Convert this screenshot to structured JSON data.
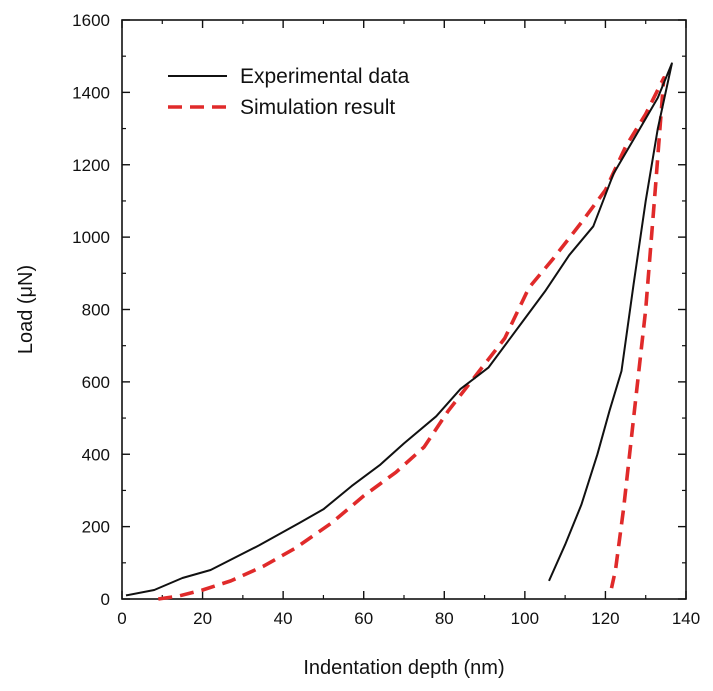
{
  "chart_data": {
    "type": "line",
    "title": "",
    "xlabel": "Indentation depth (nm)",
    "ylabel": "Load (μN)",
    "xlim": [
      0,
      140
    ],
    "ylim": [
      0,
      1600
    ],
    "x_ticks": [
      0,
      20,
      40,
      60,
      80,
      100,
      120,
      140
    ],
    "y_ticks": [
      0,
      200,
      400,
      600,
      800,
      1000,
      1200,
      1400,
      1600
    ],
    "grid": false,
    "legend_position": "top-left",
    "series": [
      {
        "name": "Experimental data",
        "color": "#111111",
        "style": "solid",
        "points": [
          [
            1,
            10
          ],
          [
            8,
            25
          ],
          [
            15,
            58
          ],
          [
            22,
            80
          ],
          [
            34,
            148
          ],
          [
            44,
            210
          ],
          [
            50,
            248
          ],
          [
            57,
            312
          ],
          [
            64,
            370
          ],
          [
            70,
            430
          ],
          [
            78,
            505
          ],
          [
            84,
            580
          ],
          [
            91,
            640
          ],
          [
            99,
            760
          ],
          [
            105,
            850
          ],
          [
            111,
            950
          ],
          [
            117,
            1030
          ],
          [
            122,
            1175
          ],
          [
            127,
            1270
          ],
          [
            133,
            1385
          ],
          [
            136.5,
            1480
          ],
          [
            133,
            1300
          ],
          [
            130,
            1100
          ],
          [
            127,
            870
          ],
          [
            124,
            630
          ],
          [
            121,
            520
          ],
          [
            118,
            400
          ],
          [
            114,
            260
          ],
          [
            110,
            150
          ],
          [
            106,
            50
          ]
        ]
      },
      {
        "name": "Simulation result",
        "color": "#e02a2a",
        "style": "dashed",
        "points": [
          [
            9,
            0
          ],
          [
            14,
            8
          ],
          [
            20,
            25
          ],
          [
            27,
            50
          ],
          [
            35,
            90
          ],
          [
            43,
            140
          ],
          [
            52,
            210
          ],
          [
            60,
            285
          ],
          [
            68,
            350
          ],
          [
            75,
            420
          ],
          [
            81,
            520
          ],
          [
            88,
            620
          ],
          [
            95,
            720
          ],
          [
            101,
            860
          ],
          [
            107,
            940
          ],
          [
            114,
            1040
          ],
          [
            120,
            1130
          ],
          [
            125,
            1250
          ],
          [
            130,
            1340
          ],
          [
            134.5,
            1440
          ],
          [
            132.5,
            1150
          ],
          [
            130,
            800
          ],
          [
            127,
            500
          ],
          [
            124.5,
            250
          ],
          [
            122.5,
            80
          ],
          [
            121.5,
            30
          ]
        ]
      }
    ]
  }
}
